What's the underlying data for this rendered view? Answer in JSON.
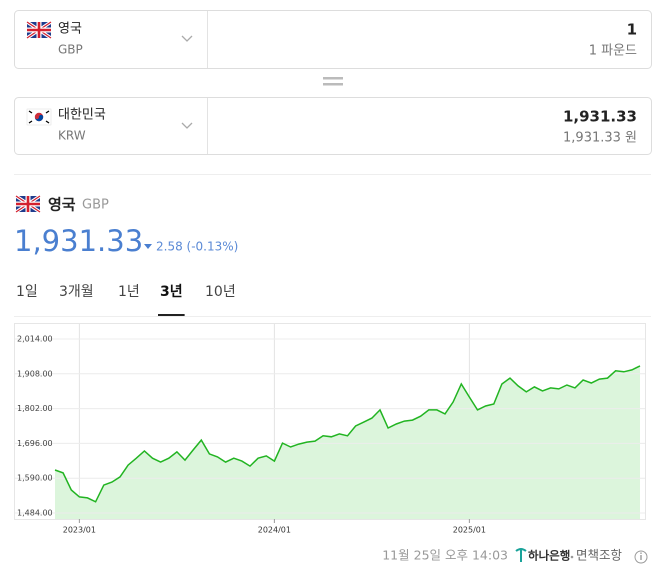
{
  "converter": {
    "from": {
      "name": "영국",
      "code": "GBP",
      "amount": "1",
      "amount_label": "1 파운드"
    },
    "to": {
      "name": "대한민국",
      "code": "KRW",
      "amount": "1,931.33",
      "amount_label": "1,931.33 원"
    }
  },
  "header": {
    "name": "영국",
    "code": "GBP",
    "rate": "1,931.33",
    "change": "2.58 (-0.13%)"
  },
  "tabs": {
    "items": [
      "1일",
      "3개월",
      "1년",
      "3년",
      "10년"
    ],
    "active": 3
  },
  "chart_data": {
    "type": "area",
    "color": "#22b422",
    "area_color": "#dcf5dc",
    "categories": [
      null,
      null,
      null,
      "2023/01",
      null,
      null,
      null,
      null,
      null,
      null,
      null,
      null,
      null,
      null,
      null,
      null,
      null,
      null,
      null,
      null,
      null,
      null,
      null,
      null,
      null,
      null,
      null,
      "2024/01",
      null,
      null,
      null,
      null,
      null,
      null,
      null,
      null,
      null,
      null,
      null,
      null,
      null,
      null,
      null,
      null,
      null,
      null,
      null,
      null,
      null,
      null,
      null,
      "2025/01",
      null,
      null,
      null,
      null,
      null,
      null,
      null,
      null,
      null,
      null,
      null,
      null,
      null,
      null,
      null,
      null,
      null,
      null,
      null,
      null,
      null
    ],
    "values": [
      1615,
      1606,
      1554,
      1533,
      1530,
      1518,
      1569,
      1578,
      1594,
      1630,
      1651,
      1673,
      1651,
      1639,
      1651,
      1670,
      1645,
      1676,
      1706,
      1664,
      1655,
      1639,
      1651,
      1642,
      1627,
      1651,
      1658,
      1642,
      1697,
      1685,
      1694,
      1700,
      1703,
      1719,
      1716,
      1725,
      1719,
      1749,
      1761,
      1773,
      1798,
      1743,
      1755,
      1764,
      1767,
      1779,
      1798,
      1798,
      1786,
      1822,
      1877,
      1837,
      1798,
      1810,
      1816,
      1877,
      1895,
      1871,
      1853,
      1868,
      1856,
      1865,
      1862,
      1874,
      1865,
      1889,
      1880,
      1892,
      1895,
      1917,
      1914,
      1920,
      1932
    ],
    "ylim": [
      1484,
      2014
    ],
    "yticks": [
      {
        "value": 1484,
        "label": "1,484.00"
      },
      {
        "value": 1590,
        "label": "1,590.00"
      },
      {
        "value": 1696,
        "label": "1,696.00"
      },
      {
        "value": 1802,
        "label": "1,802.00"
      },
      {
        "value": 1908,
        "label": "1,908.00"
      },
      {
        "value": 2014,
        "label": "2,014.00"
      }
    ],
    "grid": true
  },
  "footer": {
    "timestamp": "11월 25일 오후 14:03",
    "source": "하나은행",
    "disclaimer": "면책조항"
  }
}
